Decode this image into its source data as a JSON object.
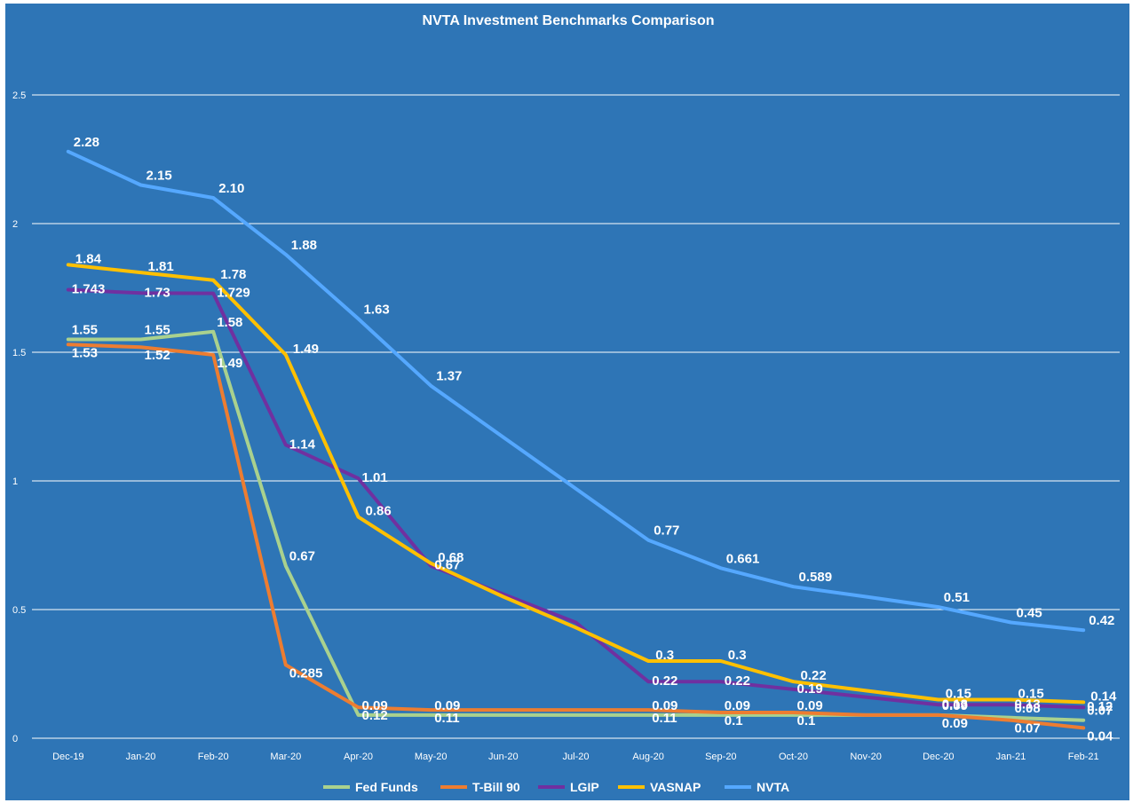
{
  "chart_data": {
    "type": "line",
    "title": "NVTA Investment Benchmarks Comparison",
    "xlabel": "",
    "ylabel": "",
    "ylim": [
      0,
      2.5
    ],
    "yticks": [
      "0",
      "0.5",
      "1",
      "1.5",
      "2",
      "2.5"
    ],
    "grid": true,
    "legend_position": "bottom",
    "categories": [
      "Dec-19",
      "Jan-20",
      "Feb-20",
      "Mar-20",
      "Apr-20",
      "May-20",
      "Jun-20",
      "Jul-20",
      "Aug-20",
      "Sep-20",
      "Oct-20",
      "Nov-20",
      "Dec-20",
      "Jan-21",
      "Feb-21"
    ],
    "series": [
      {
        "name": "Fed Funds",
        "color": "#a9d18e",
        "values": [
          1.55,
          1.55,
          1.58,
          0.67,
          0.09,
          0.09,
          0.09,
          0.09,
          0.09,
          0.09,
          0.09,
          0.09,
          0.09,
          0.08,
          0.07
        ],
        "labels": [
          "1.55",
          "1.55",
          "1.58",
          "0.67",
          "0.09",
          "0.09",
          null,
          null,
          "0.09",
          "0.09",
          "0.09",
          null,
          "0.09",
          "0.08",
          "0.07"
        ]
      },
      {
        "name": "T-Bill 90",
        "color": "#ed7d31",
        "values": [
          1.53,
          1.52,
          1.49,
          0.285,
          0.12,
          0.11,
          0.11,
          0.11,
          0.11,
          0.1,
          0.1,
          0.09,
          0.09,
          0.07,
          0.04
        ],
        "labels": [
          "1.53",
          "1.52",
          "1.49",
          "0.285",
          "0.12",
          "0.11",
          null,
          null,
          "0.11",
          "0.1",
          "0.1",
          null,
          "0.09",
          "0.07",
          "0.04"
        ]
      },
      {
        "name": "LGIP",
        "color": "#7030a0",
        "values": [
          1.743,
          1.73,
          1.729,
          1.14,
          1.01,
          0.67,
          0.56,
          0.45,
          0.22,
          0.22,
          0.19,
          0.16,
          0.13,
          0.13,
          0.12
        ],
        "labels": [
          "1.743",
          "1.73",
          "1.729",
          "1.14",
          "1.01",
          "0.67",
          null,
          null,
          "0.22",
          "0.22",
          "0.19",
          null,
          "0.13",
          "0.13",
          "0.12"
        ]
      },
      {
        "name": "VASNAP",
        "color": "#ffc000",
        "values": [
          1.84,
          1.81,
          1.78,
          1.49,
          0.86,
          0.68,
          0.55,
          0.43,
          0.3,
          0.3,
          0.22,
          0.185,
          0.15,
          0.15,
          0.14
        ],
        "labels": [
          "1.84",
          "1.81",
          "1.78",
          "1.49",
          "0.86",
          "0.68",
          null,
          null,
          "0.3",
          "0.3",
          "0.22",
          null,
          "0.15",
          "0.15",
          "0.14"
        ]
      },
      {
        "name": "NVTA",
        "color": "#55a8ff",
        "values": [
          2.28,
          2.15,
          2.1,
          1.88,
          1.63,
          1.37,
          1.17,
          0.97,
          0.77,
          0.661,
          0.589,
          0.55,
          0.51,
          0.45,
          0.42
        ],
        "labels": [
          "2.28",
          "2.15",
          "2.10",
          "1.88",
          "1.63",
          "1.37",
          null,
          null,
          "0.77",
          "0.661",
          "0.589",
          null,
          "0.51",
          "0.45",
          "0.42"
        ]
      }
    ]
  }
}
